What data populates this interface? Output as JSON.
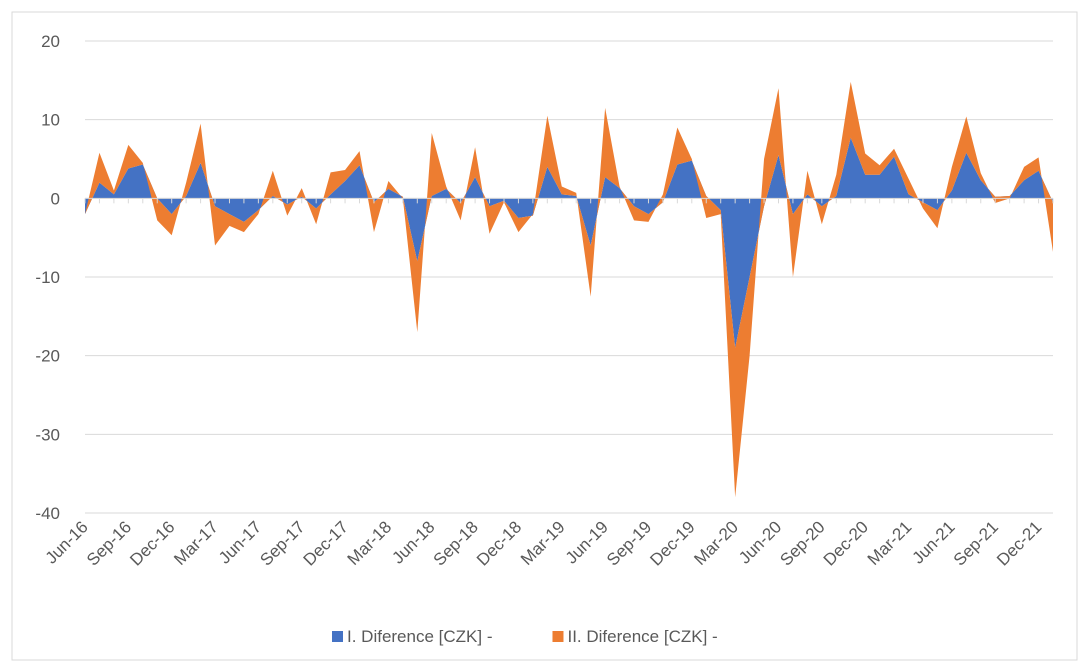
{
  "chart_data": {
    "type": "stacked-area",
    "categories": [
      "Jun-16",
      null,
      null,
      "Sep-16",
      null,
      null,
      "Dec-16",
      null,
      null,
      "Mar-17",
      null,
      null,
      "Jun-17",
      null,
      null,
      "Sep-17",
      null,
      null,
      "Dec-17",
      null,
      null,
      "Mar-18",
      null,
      null,
      "Jun-18",
      null,
      null,
      "Sep-18",
      null,
      null,
      "Dec-18",
      null,
      null,
      "Mar-19",
      null,
      null,
      "Jun-19",
      null,
      null,
      "Sep-19",
      null,
      null,
      "Dec-19",
      null,
      null,
      "Mar-20",
      null,
      null,
      "Jun-20",
      null,
      null,
      "Sep-20",
      null,
      null,
      "Dec-20",
      null,
      null,
      "Mar-21",
      null,
      null,
      "Jun-21",
      null,
      null,
      "Sep-21",
      null,
      null,
      "Dec-21",
      null
    ],
    "series": [
      {
        "name": "I. Diference [CZK] -",
        "color": "#4472c4",
        "values": [
          -2,
          2,
          0.5,
          3.8,
          4.3,
          0,
          -2,
          0.3,
          4.5,
          -1,
          -2,
          -3,
          -1.5,
          0.3,
          -0.8,
          0.2,
          -1.3,
          0.5,
          2.2,
          4.2,
          -0.5,
          1.2,
          0.2,
          -8,
          0.3,
          1.2,
          -0.6,
          2.7,
          -1,
          -0.3,
          -2.5,
          -2.2,
          4,
          0.5,
          0.3,
          -6,
          2.7,
          1.3,
          -1,
          -2,
          -0.5,
          4.3,
          4.8,
          0.3,
          -1.5,
          -19,
          -10,
          -1,
          5.5,
          -2,
          0.5,
          -1,
          0.3,
          7.7,
          3,
          3,
          5.3,
          0.5,
          -0.5,
          -1.5,
          1,
          5.8,
          2.3,
          0.2,
          0.3,
          2.3,
          3.5,
          -0.5
        ]
      },
      {
        "name": "II. Diference [CZK] -",
        "color": "#ed7d31",
        "values": [
          0,
          3.8,
          0.5,
          3,
          0.2,
          -2.8,
          -2.7,
          1.7,
          5,
          -5,
          -1.5,
          -1.3,
          -0.5,
          3.2,
          -1.4,
          1.1,
          -2,
          2.8,
          1.4,
          1.8,
          -3.8,
          1,
          -0.2,
          -9,
          8,
          0.3,
          -2.2,
          3.8,
          -3.5,
          -0.2,
          -1.8,
          0.2,
          6.5,
          1,
          0.4,
          -6.5,
          8.8,
          0.2,
          -1.8,
          -1,
          1,
          4.7,
          0.2,
          -2.8,
          -0.5,
          -19,
          -10,
          6,
          8.5,
          -8,
          3,
          -2.3,
          2.7,
          7.1,
          2.7,
          1.2,
          1,
          2,
          -0.8,
          -2.3,
          3,
          4.6,
          0.9,
          -0.8,
          -0.3,
          1.7,
          1.7,
          -6.3
        ]
      }
    ],
    "ylim": [
      -40,
      20
    ],
    "yticks": [
      -40,
      -30,
      -20,
      -10,
      0,
      10,
      20
    ],
    "grid": true,
    "legend": "bottom"
  }
}
